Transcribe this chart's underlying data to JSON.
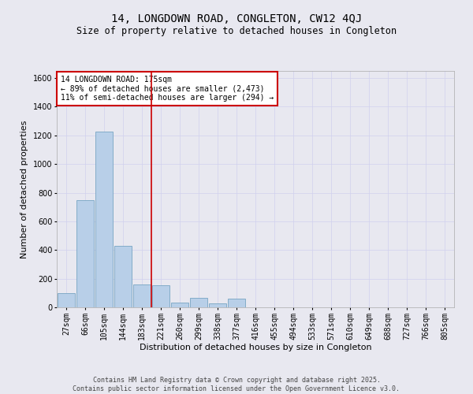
{
  "title": "14, LONGDOWN ROAD, CONGLETON, CW12 4QJ",
  "subtitle": "Size of property relative to detached houses in Congleton",
  "xlabel": "Distribution of detached houses by size in Congleton",
  "ylabel": "Number of detached properties",
  "categories": [
    "27sqm",
    "66sqm",
    "105sqm",
    "144sqm",
    "183sqm",
    "221sqm",
    "260sqm",
    "299sqm",
    "338sqm",
    "377sqm",
    "416sqm",
    "455sqm",
    "494sqm",
    "533sqm",
    "571sqm",
    "610sqm",
    "649sqm",
    "688sqm",
    "727sqm",
    "766sqm",
    "805sqm"
  ],
  "values": [
    100,
    750,
    1225,
    430,
    160,
    155,
    35,
    65,
    30,
    60,
    0,
    0,
    0,
    0,
    0,
    0,
    0,
    0,
    0,
    0,
    0
  ],
  "bar_color": "#b8cfe8",
  "bar_edge_color": "#6699bb",
  "grid_color": "#d0d0ee",
  "background_color": "#e8e8f0",
  "vline_color": "#cc0000",
  "vline_index": 4.5,
  "annotation_text": "14 LONGDOWN ROAD: 175sqm\n← 89% of detached houses are smaller (2,473)\n11% of semi-detached houses are larger (294) →",
  "annotation_box_color": "#cc0000",
  "ylim": [
    0,
    1650
  ],
  "yticks": [
    0,
    200,
    400,
    600,
    800,
    1000,
    1200,
    1400,
    1600
  ],
  "footnote": "Contains HM Land Registry data © Crown copyright and database right 2025.\nContains public sector information licensed under the Open Government Licence v3.0.",
  "title_fontsize": 10,
  "subtitle_fontsize": 8.5,
  "tick_fontsize": 7,
  "label_fontsize": 8,
  "annotation_fontsize": 7,
  "footnote_fontsize": 6
}
